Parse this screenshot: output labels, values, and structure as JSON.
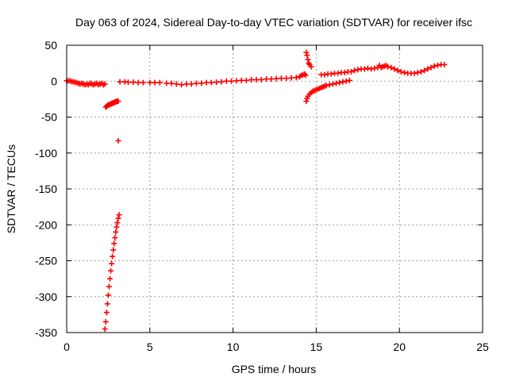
{
  "chart_data": {
    "type": "scatter",
    "title": "Day 063 of 2024, Sidereal Day-to-day VTEC variation (SDTVAR) for receiver ifsc",
    "xlabel": "GPS time / hours",
    "ylabel": "SDTVAR / TECUs",
    "xlim": [
      0,
      25
    ],
    "ylim": [
      -350,
      50
    ],
    "xticks": [
      "0",
      "5",
      "10",
      "15",
      "20",
      "25"
    ],
    "yticks": [
      "50",
      "0",
      "-50",
      "-100",
      "-150",
      "-200",
      "-250",
      "-300",
      "-350"
    ],
    "grid": true,
    "marker": "+",
    "color": "#ff0000",
    "points": [
      [
        0.0,
        0.5
      ],
      [
        0.1,
        0.3
      ],
      [
        0.2,
        0.6
      ],
      [
        0.3,
        -0.5
      ],
      [
        0.4,
        -1
      ],
      [
        0.5,
        -1.5
      ],
      [
        0.6,
        -2
      ],
      [
        0.7,
        -3
      ],
      [
        0.8,
        -4
      ],
      [
        0.9,
        -3
      ],
      [
        1.0,
        -4
      ],
      [
        1.1,
        -5
      ],
      [
        1.2,
        -4
      ],
      [
        1.3,
        -5
      ],
      [
        1.4,
        -3
      ],
      [
        1.5,
        -4
      ],
      [
        1.6,
        -5
      ],
      [
        1.7,
        -4
      ],
      [
        1.8,
        -3
      ],
      [
        1.9,
        -5
      ],
      [
        2.0,
        -4
      ],
      [
        2.1,
        -3
      ],
      [
        2.2,
        -5
      ],
      [
        2.3,
        -4
      ],
      [
        2.35,
        -36
      ],
      [
        2.4,
        -35
      ],
      [
        2.45,
        -34
      ],
      [
        2.5,
        -33
      ],
      [
        2.55,
        -33
      ],
      [
        2.6,
        -32
      ],
      [
        2.65,
        -32
      ],
      [
        2.7,
        -31
      ],
      [
        2.75,
        -31
      ],
      [
        2.8,
        -30
      ],
      [
        2.85,
        -30
      ],
      [
        2.9,
        -29
      ],
      [
        2.95,
        -29
      ],
      [
        3.0,
        -28
      ],
      [
        3.05,
        -28
      ],
      [
        3.1,
        -28
      ],
      [
        3.1,
        -83
      ],
      [
        2.3,
        -345
      ],
      [
        2.35,
        -335
      ],
      [
        2.4,
        -322
      ],
      [
        2.45,
        -310
      ],
      [
        2.5,
        -298
      ],
      [
        2.55,
        -286
      ],
      [
        2.6,
        -275
      ],
      [
        2.65,
        -264
      ],
      [
        2.7,
        -254
      ],
      [
        2.75,
        -244
      ],
      [
        2.8,
        -235
      ],
      [
        2.85,
        -226
      ],
      [
        2.9,
        -218
      ],
      [
        2.95,
        -210
      ],
      [
        3.0,
        -203
      ],
      [
        3.05,
        -197
      ],
      [
        3.1,
        -191
      ],
      [
        3.15,
        -186
      ],
      [
        3.2,
        -1
      ],
      [
        3.5,
        -1
      ],
      [
        3.7,
        -1.5
      ],
      [
        4.0,
        -1.5
      ],
      [
        4.3,
        -2
      ],
      [
        4.6,
        -2
      ],
      [
        5.0,
        -2
      ],
      [
        5.3,
        -2
      ],
      [
        5.6,
        -2
      ],
      [
        6.0,
        -3
      ],
      [
        6.3,
        -3
      ],
      [
        6.6,
        -4
      ],
      [
        6.9,
        -5
      ],
      [
        7.2,
        -4
      ],
      [
        7.5,
        -4
      ],
      [
        7.8,
        -3
      ],
      [
        8.1,
        -3
      ],
      [
        8.4,
        -2
      ],
      [
        8.7,
        -2
      ],
      [
        9.0,
        -1.5
      ],
      [
        9.3,
        -1
      ],
      [
        9.6,
        0
      ],
      [
        9.9,
        0
      ],
      [
        10.2,
        0.5
      ],
      [
        10.5,
        1
      ],
      [
        10.8,
        1
      ],
      [
        11.1,
        2
      ],
      [
        11.4,
        2
      ],
      [
        11.7,
        2
      ],
      [
        12.0,
        3
      ],
      [
        12.3,
        3
      ],
      [
        12.6,
        3.5
      ],
      [
        12.9,
        4
      ],
      [
        13.2,
        4
      ],
      [
        13.5,
        4.5
      ],
      [
        13.8,
        5
      ],
      [
        14.0,
        6
      ],
      [
        14.1,
        8
      ],
      [
        14.2,
        9
      ],
      [
        14.3,
        10
      ],
      [
        14.35,
        8
      ],
      [
        14.4,
        40
      ],
      [
        14.45,
        36
      ],
      [
        14.5,
        30
      ],
      [
        14.55,
        25
      ],
      [
        14.6,
        23
      ],
      [
        14.7,
        20
      ],
      [
        14.4,
        -28
      ],
      [
        14.45,
        -24
      ],
      [
        14.5,
        -21
      ],
      [
        14.6,
        -18
      ],
      [
        14.7,
        -16
      ],
      [
        14.8,
        -14
      ],
      [
        14.9,
        -13
      ],
      [
        15.0,
        -12
      ],
      [
        15.1,
        -11
      ],
      [
        15.2,
        -10
      ],
      [
        15.3,
        -9
      ],
      [
        15.4,
        -8
      ],
      [
        15.5,
        -7
      ],
      [
        15.6,
        -6
      ],
      [
        15.8,
        -5
      ],
      [
        16.0,
        -4
      ],
      [
        16.2,
        -3
      ],
      [
        16.4,
        -2
      ],
      [
        16.6,
        -1
      ],
      [
        16.8,
        0
      ],
      [
        17.0,
        1
      ],
      [
        15.3,
        9
      ],
      [
        15.5,
        9
      ],
      [
        15.7,
        10
      ],
      [
        15.9,
        10
      ],
      [
        16.1,
        11
      ],
      [
        16.3,
        11
      ],
      [
        16.5,
        12
      ],
      [
        16.7,
        12
      ],
      [
        16.9,
        13
      ],
      [
        17.1,
        13
      ],
      [
        17.3,
        15
      ],
      [
        17.5,
        16
      ],
      [
        17.7,
        17
      ],
      [
        17.9,
        17
      ],
      [
        18.1,
        18
      ],
      [
        18.3,
        17
      ],
      [
        18.5,
        18
      ],
      [
        18.7,
        19
      ],
      [
        18.8,
        22
      ],
      [
        18.9,
        19
      ],
      [
        19.0,
        20
      ],
      [
        19.1,
        21
      ],
      [
        19.2,
        22
      ],
      [
        19.3,
        20
      ],
      [
        19.5,
        19
      ],
      [
        19.7,
        17
      ],
      [
        19.9,
        15
      ],
      [
        20.1,
        13
      ],
      [
        20.3,
        12
      ],
      [
        20.5,
        11
      ],
      [
        20.7,
        11
      ],
      [
        20.9,
        11
      ],
      [
        21.1,
        12
      ],
      [
        21.3,
        13
      ],
      [
        21.5,
        15
      ],
      [
        21.7,
        17
      ],
      [
        21.9,
        19
      ],
      [
        22.1,
        21
      ],
      [
        22.3,
        22
      ],
      [
        22.5,
        23
      ],
      [
        22.7,
        23
      ]
    ]
  }
}
